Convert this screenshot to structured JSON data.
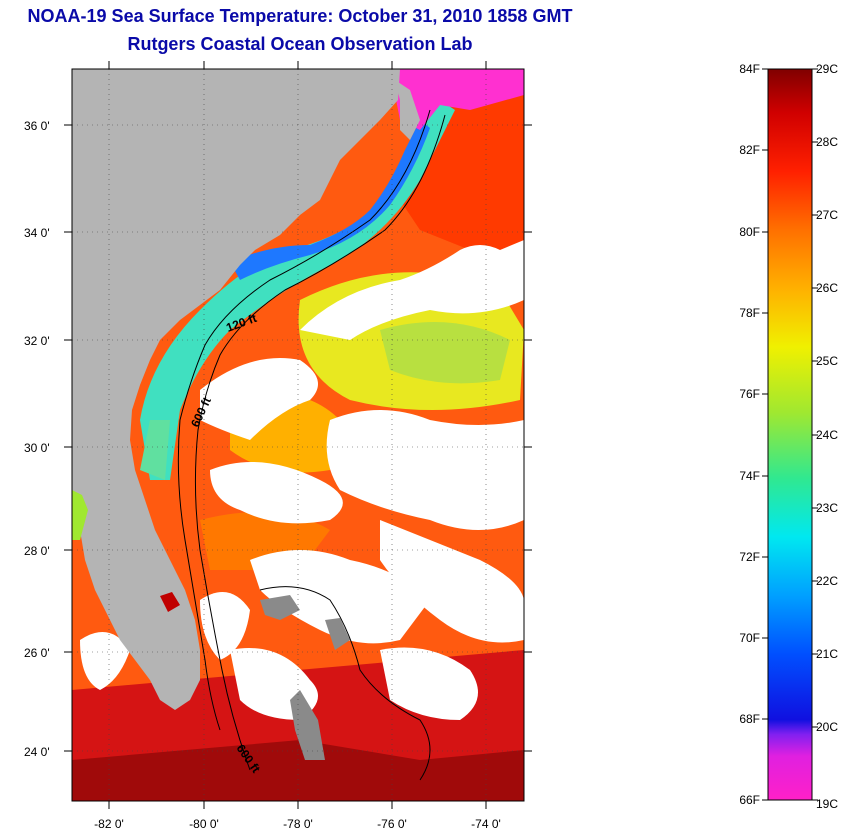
{
  "header": {
    "title": "NOAA-19 Sea Surface Temperature:  October 31, 2010 1858 GMT",
    "subtitle": "Rutgers Coastal Ocean Observation Lab"
  },
  "map": {
    "lon_range": [
      -83,
      -73
    ],
    "lat_range": [
      23,
      37
    ],
    "lon_ticks": [
      "-82 0'",
      "-80 0'",
      "-78 0'",
      "-76 0'",
      "-74 0'"
    ],
    "lat_ticks": [
      "36 0'",
      "34 0'",
      "32 0'",
      "30 0'",
      "28 0'",
      "26 0'",
      "24 0'"
    ],
    "contour_labels": [
      "120 ft",
      "600 ft",
      "600 ft"
    ],
    "colors": {
      "land": "#b4b4b4",
      "cloud": "#ffffff",
      "contour": "#000000"
    }
  },
  "colorbar": {
    "fahrenheit_labels": [
      "84F",
      "82F",
      "80F",
      "78F",
      "76F",
      "74F",
      "72F",
      "70F",
      "68F",
      "66F"
    ],
    "celsius_labels": [
      "29C",
      "28C",
      "27C",
      "26C",
      "25C",
      "24C",
      "23C",
      "22C",
      "21C",
      "20C",
      "19C"
    ],
    "range_c": [
      19,
      29
    ],
    "range_f": [
      66,
      84
    ],
    "palette": [
      "#ff20c8",
      "#c020f0",
      "#2020e0",
      "#0060ff",
      "#00b4ff",
      "#00f0e8",
      "#30e890",
      "#a0e830",
      "#f0f000",
      "#ffb400",
      "#ff7000",
      "#ff2000",
      "#d00000",
      "#800000"
    ]
  }
}
